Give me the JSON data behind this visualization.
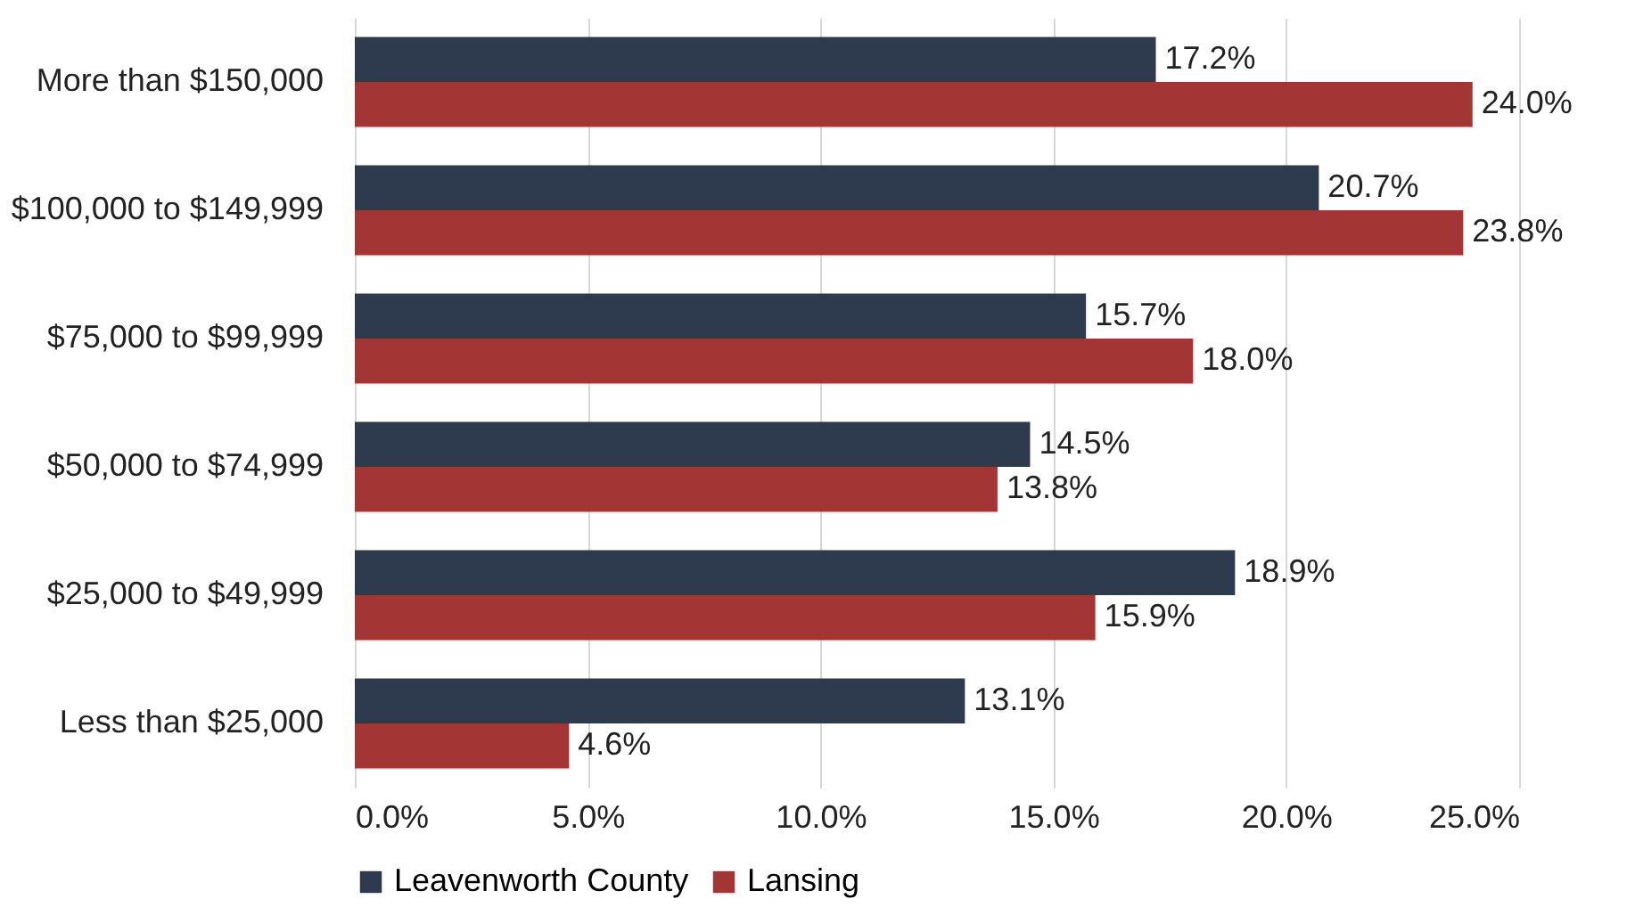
{
  "chart_data": {
    "type": "bar",
    "orientation": "horizontal",
    "categories": [
      "More than $150,000",
      "$100,000 to $149,999",
      "$75,000 to $99,999",
      "$50,000 to $74,999",
      "$25,000 to $49,999",
      "Less than $25,000"
    ],
    "series": [
      {
        "name": "Leavenworth County",
        "color": "#2e3a4e",
        "values": [
          17.2,
          20.7,
          15.7,
          14.5,
          18.9,
          13.1
        ],
        "value_labels": [
          "17.2%",
          "20.7%",
          "15.7%",
          "14.5%",
          "18.9%",
          "13.1%"
        ]
      },
      {
        "name": "Lansing",
        "color": "#a33534",
        "values": [
          24.0,
          23.8,
          18.0,
          13.8,
          15.9,
          4.6
        ],
        "value_labels": [
          "24.0%",
          "23.8%",
          "18.0%",
          "13.8%",
          "15.9%",
          "4.6%"
        ]
      }
    ],
    "xlim": [
      0,
      25
    ],
    "xticks": [
      {
        "value": 0,
        "label": "0.0%"
      },
      {
        "value": 5,
        "label": "5.0%"
      },
      {
        "value": 10,
        "label": "10.0%"
      },
      {
        "value": 15,
        "label": "15.0%"
      },
      {
        "value": 20,
        "label": "20.0%"
      },
      {
        "value": 25,
        "label": "25.0%"
      }
    ],
    "grid": "x",
    "legend": "bottom"
  }
}
